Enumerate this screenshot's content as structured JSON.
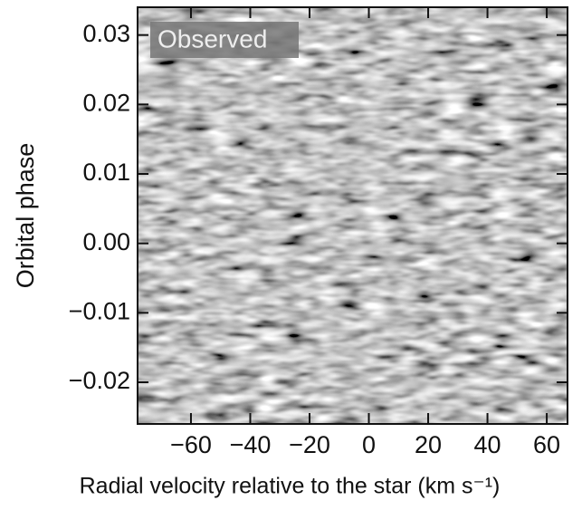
{
  "chart_data": {
    "type": "image",
    "annotation": "Observed",
    "xlabel": "Radial velocity relative to the star (km s⁻¹)",
    "ylabel": "Orbital phase",
    "xlim": [
      -78,
      67
    ],
    "ylim": [
      -0.026,
      0.034
    ],
    "xticks": [
      {
        "value": -60,
        "label": "−60"
      },
      {
        "value": -40,
        "label": "−40"
      },
      {
        "value": -20,
        "label": "−20"
      },
      0,
      20,
      40,
      60
    ],
    "yticks": [
      {
        "value": -0.02,
        "label": "−0.02"
      },
      {
        "value": -0.01,
        "label": "−0.01"
      },
      {
        "value": 0,
        "label": "0.00"
      },
      0.01,
      0.02,
      0.03
    ]
  }
}
